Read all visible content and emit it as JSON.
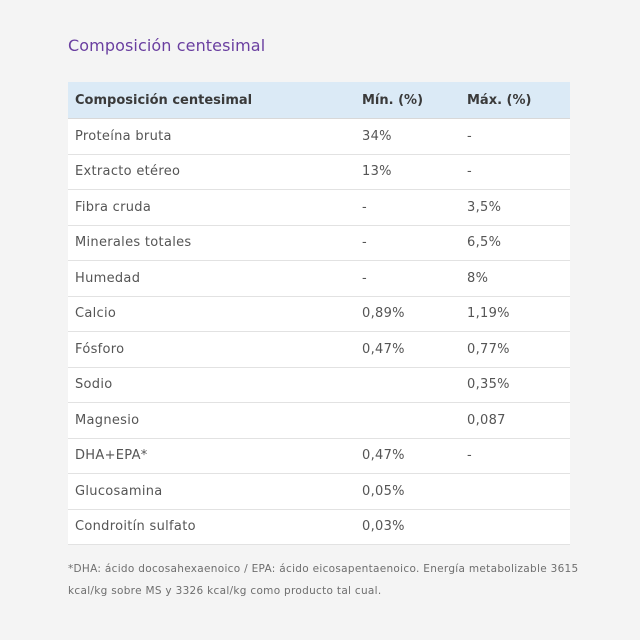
{
  "title": "Composición centesimal",
  "table": {
    "headers": [
      "Composición centesimal",
      "Mín. (%)",
      "Máx. (%)"
    ],
    "rows": [
      [
        "Proteína bruta",
        "34%",
        "-"
      ],
      [
        "Extracto etéreo",
        "13%",
        "-"
      ],
      [
        "Fibra cruda",
        "-",
        "3,5%"
      ],
      [
        "Minerales totales",
        "-",
        "6,5%"
      ],
      [
        "Humedad",
        "-",
        "8%"
      ],
      [
        "Calcio",
        "0,89%",
        "1,19%"
      ],
      [
        "Fósforo",
        "0,47%",
        "0,77%"
      ],
      [
        "Sodio",
        "",
        "0,35%"
      ],
      [
        "Magnesio",
        "",
        "0,087"
      ],
      [
        "DHA+EPA*",
        "0,47%",
        "-"
      ],
      [
        "Glucosamina",
        "0,05%",
        ""
      ],
      [
        "Condroitín sulfato",
        "0,03%",
        ""
      ]
    ]
  },
  "footnote": "*DHA: ácido docosahexaenoico / EPA: ácido eicosapentaenoico. Energía metabolizable 3615 kcal/kg sobre MS y 3326 kcal/kg como producto tal cual."
}
